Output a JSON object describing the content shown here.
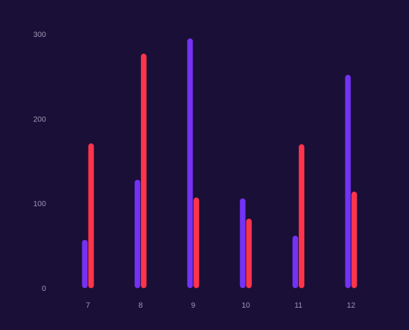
{
  "chart_data": {
    "type": "bar",
    "categories": [
      "7",
      "8",
      "9",
      "10",
      "11",
      "12"
    ],
    "series": [
      {
        "color": "#7432f5",
        "values": [
          57,
          128,
          295,
          106,
          62,
          252
        ]
      },
      {
        "color": "#ff344a",
        "values": [
          171,
          277,
          107,
          82,
          170,
          114
        ]
      }
    ],
    "y_ticks": [
      "0",
      "100",
      "200",
      "300"
    ],
    "ylim": [
      0,
      300
    ],
    "grid": false,
    "legend": "none",
    "title": "",
    "xlabel": "",
    "ylabel": ""
  },
  "colors": {
    "background": "#1a0f37",
    "tick_text": "#9e98b5"
  }
}
